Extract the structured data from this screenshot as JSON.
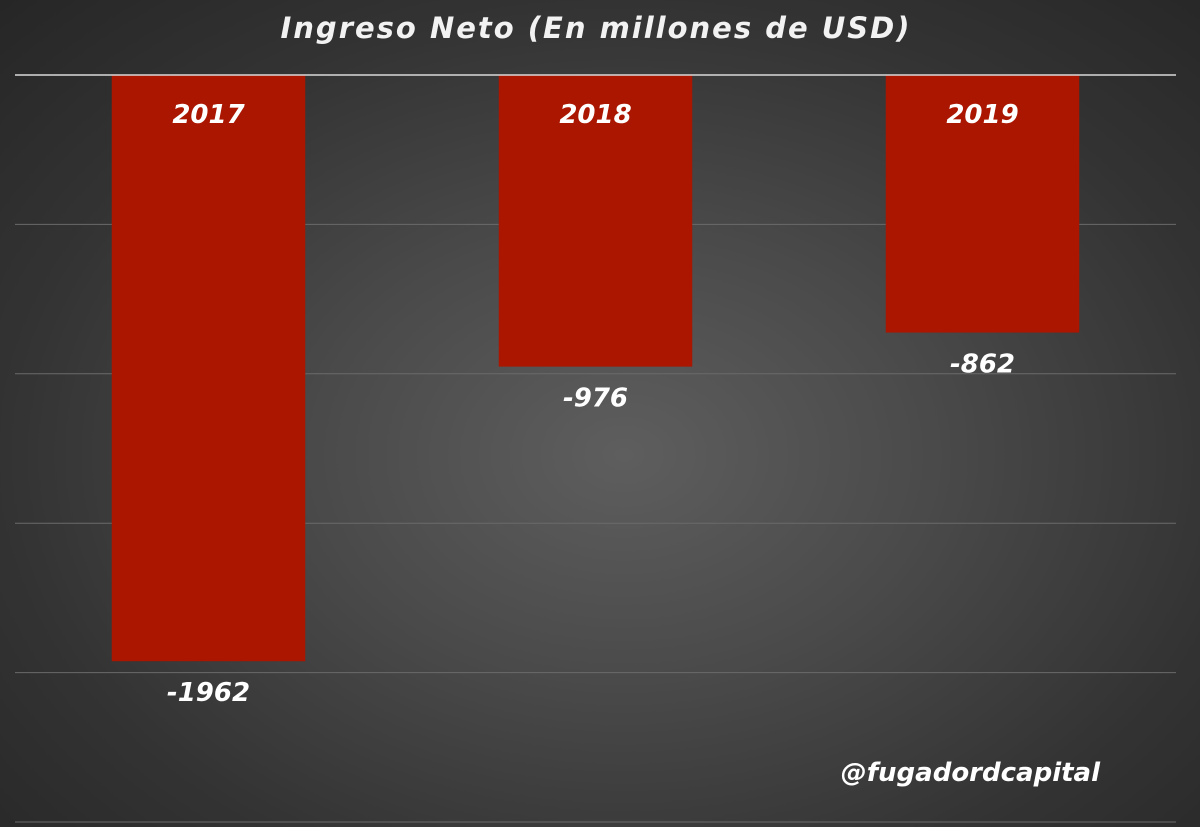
{
  "chart_data": {
    "type": "bar",
    "title": "Ingreso Neto (En millones de USD)",
    "categories": [
      "2017",
      "2018",
      "2019"
    ],
    "values": [
      -1962,
      -976,
      -862
    ],
    "value_labels": [
      "-1962",
      "-976",
      "-862"
    ],
    "ylim": [
      -2500,
      0
    ],
    "grid": true,
    "legend": "none",
    "colors": {
      "bar": "#aa1600",
      "text": "#ffffff"
    }
  },
  "watermark": "@fugadordcapital"
}
